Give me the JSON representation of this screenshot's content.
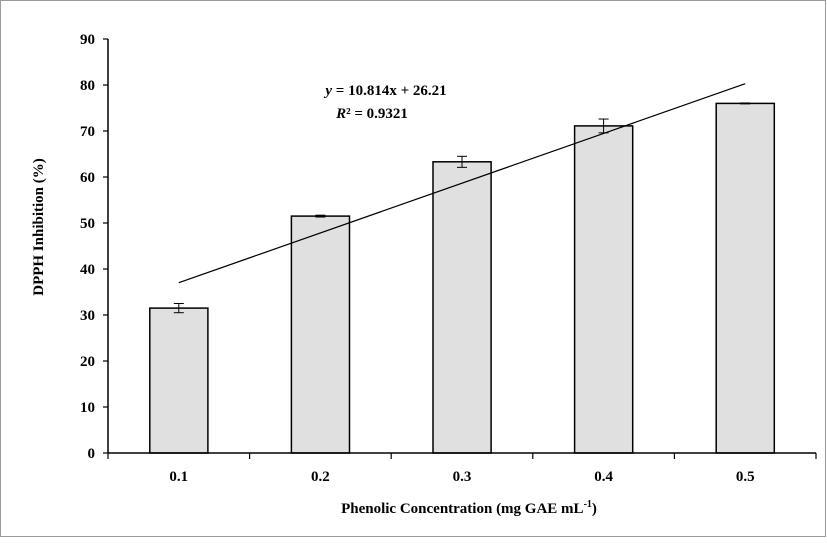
{
  "chart_data": {
    "type": "bar",
    "categories": [
      "0.1",
      "0.2",
      "0.3",
      "0.4",
      "0.5"
    ],
    "values": [
      31.5,
      51.5,
      63.3,
      71.1,
      76.0
    ],
    "errors": [
      1.0,
      0.2,
      1.2,
      1.5,
      0.1
    ],
    "xlabel": "Phenolic Concentration (mg GAE mL",
    "xlabel_sup": "-1",
    "xlabel_close": ")",
    "ylabel": "DPPH Inhibition (%)",
    "ylim": [
      0,
      90
    ],
    "yticks": [
      "0",
      "10",
      "20",
      "30",
      "40",
      "50",
      "60",
      "70",
      "80",
      "90"
    ],
    "grid": false,
    "bar_color": "#e0e0e0",
    "bar_edge_color": "#000000",
    "trendline": {
      "type": "linear",
      "slope": 10.814,
      "intercept": 26.21,
      "x_start_category": "0.1",
      "x_end_category": "0.5",
      "equation_var": "y",
      "equation_rest": " = 10.814x + 26.21",
      "r2_var": "R",
      "r2_rest": "² = 0.9321"
    }
  }
}
